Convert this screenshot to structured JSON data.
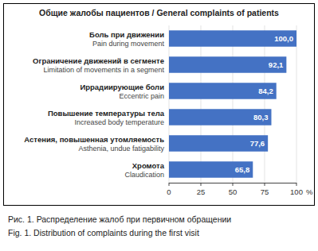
{
  "chart_data": {
    "type": "bar",
    "orientation": "horizontal",
    "title": "Общие жалобы пациентов / General complaints of patients",
    "categories": [
      [
        "Боль при движении",
        "Pain during movement"
      ],
      [
        "Ограничение движений в сегменте",
        "Limitation of movements in a segment"
      ],
      [
        "Иррадиирующие боли",
        "Eccentric pain"
      ],
      [
        "Повышение температуры тела",
        "Increased body temperature"
      ],
      [
        "Астения, повышенная утомляемость",
        "Asthenia, undue fatigability"
      ],
      [
        "Хромота",
        "Claudication"
      ]
    ],
    "values": [
      100.0,
      92.1,
      84.2,
      80.3,
      77.6,
      65.8
    ],
    "value_labels": [
      "100,0",
      "92,1",
      "84,2",
      "80,3",
      "77,6",
      "65,8"
    ],
    "data_labels": true,
    "color": "#4472C4",
    "xlabel": "%",
    "xlim": [
      0,
      100
    ],
    "xticks": [
      0,
      25,
      50,
      75,
      100
    ],
    "annotations": [
      "Рис. 1. Распределение жалоб при первичном обращении",
      "Fig. 1. Distribution of complaints during the first visit"
    ]
  }
}
